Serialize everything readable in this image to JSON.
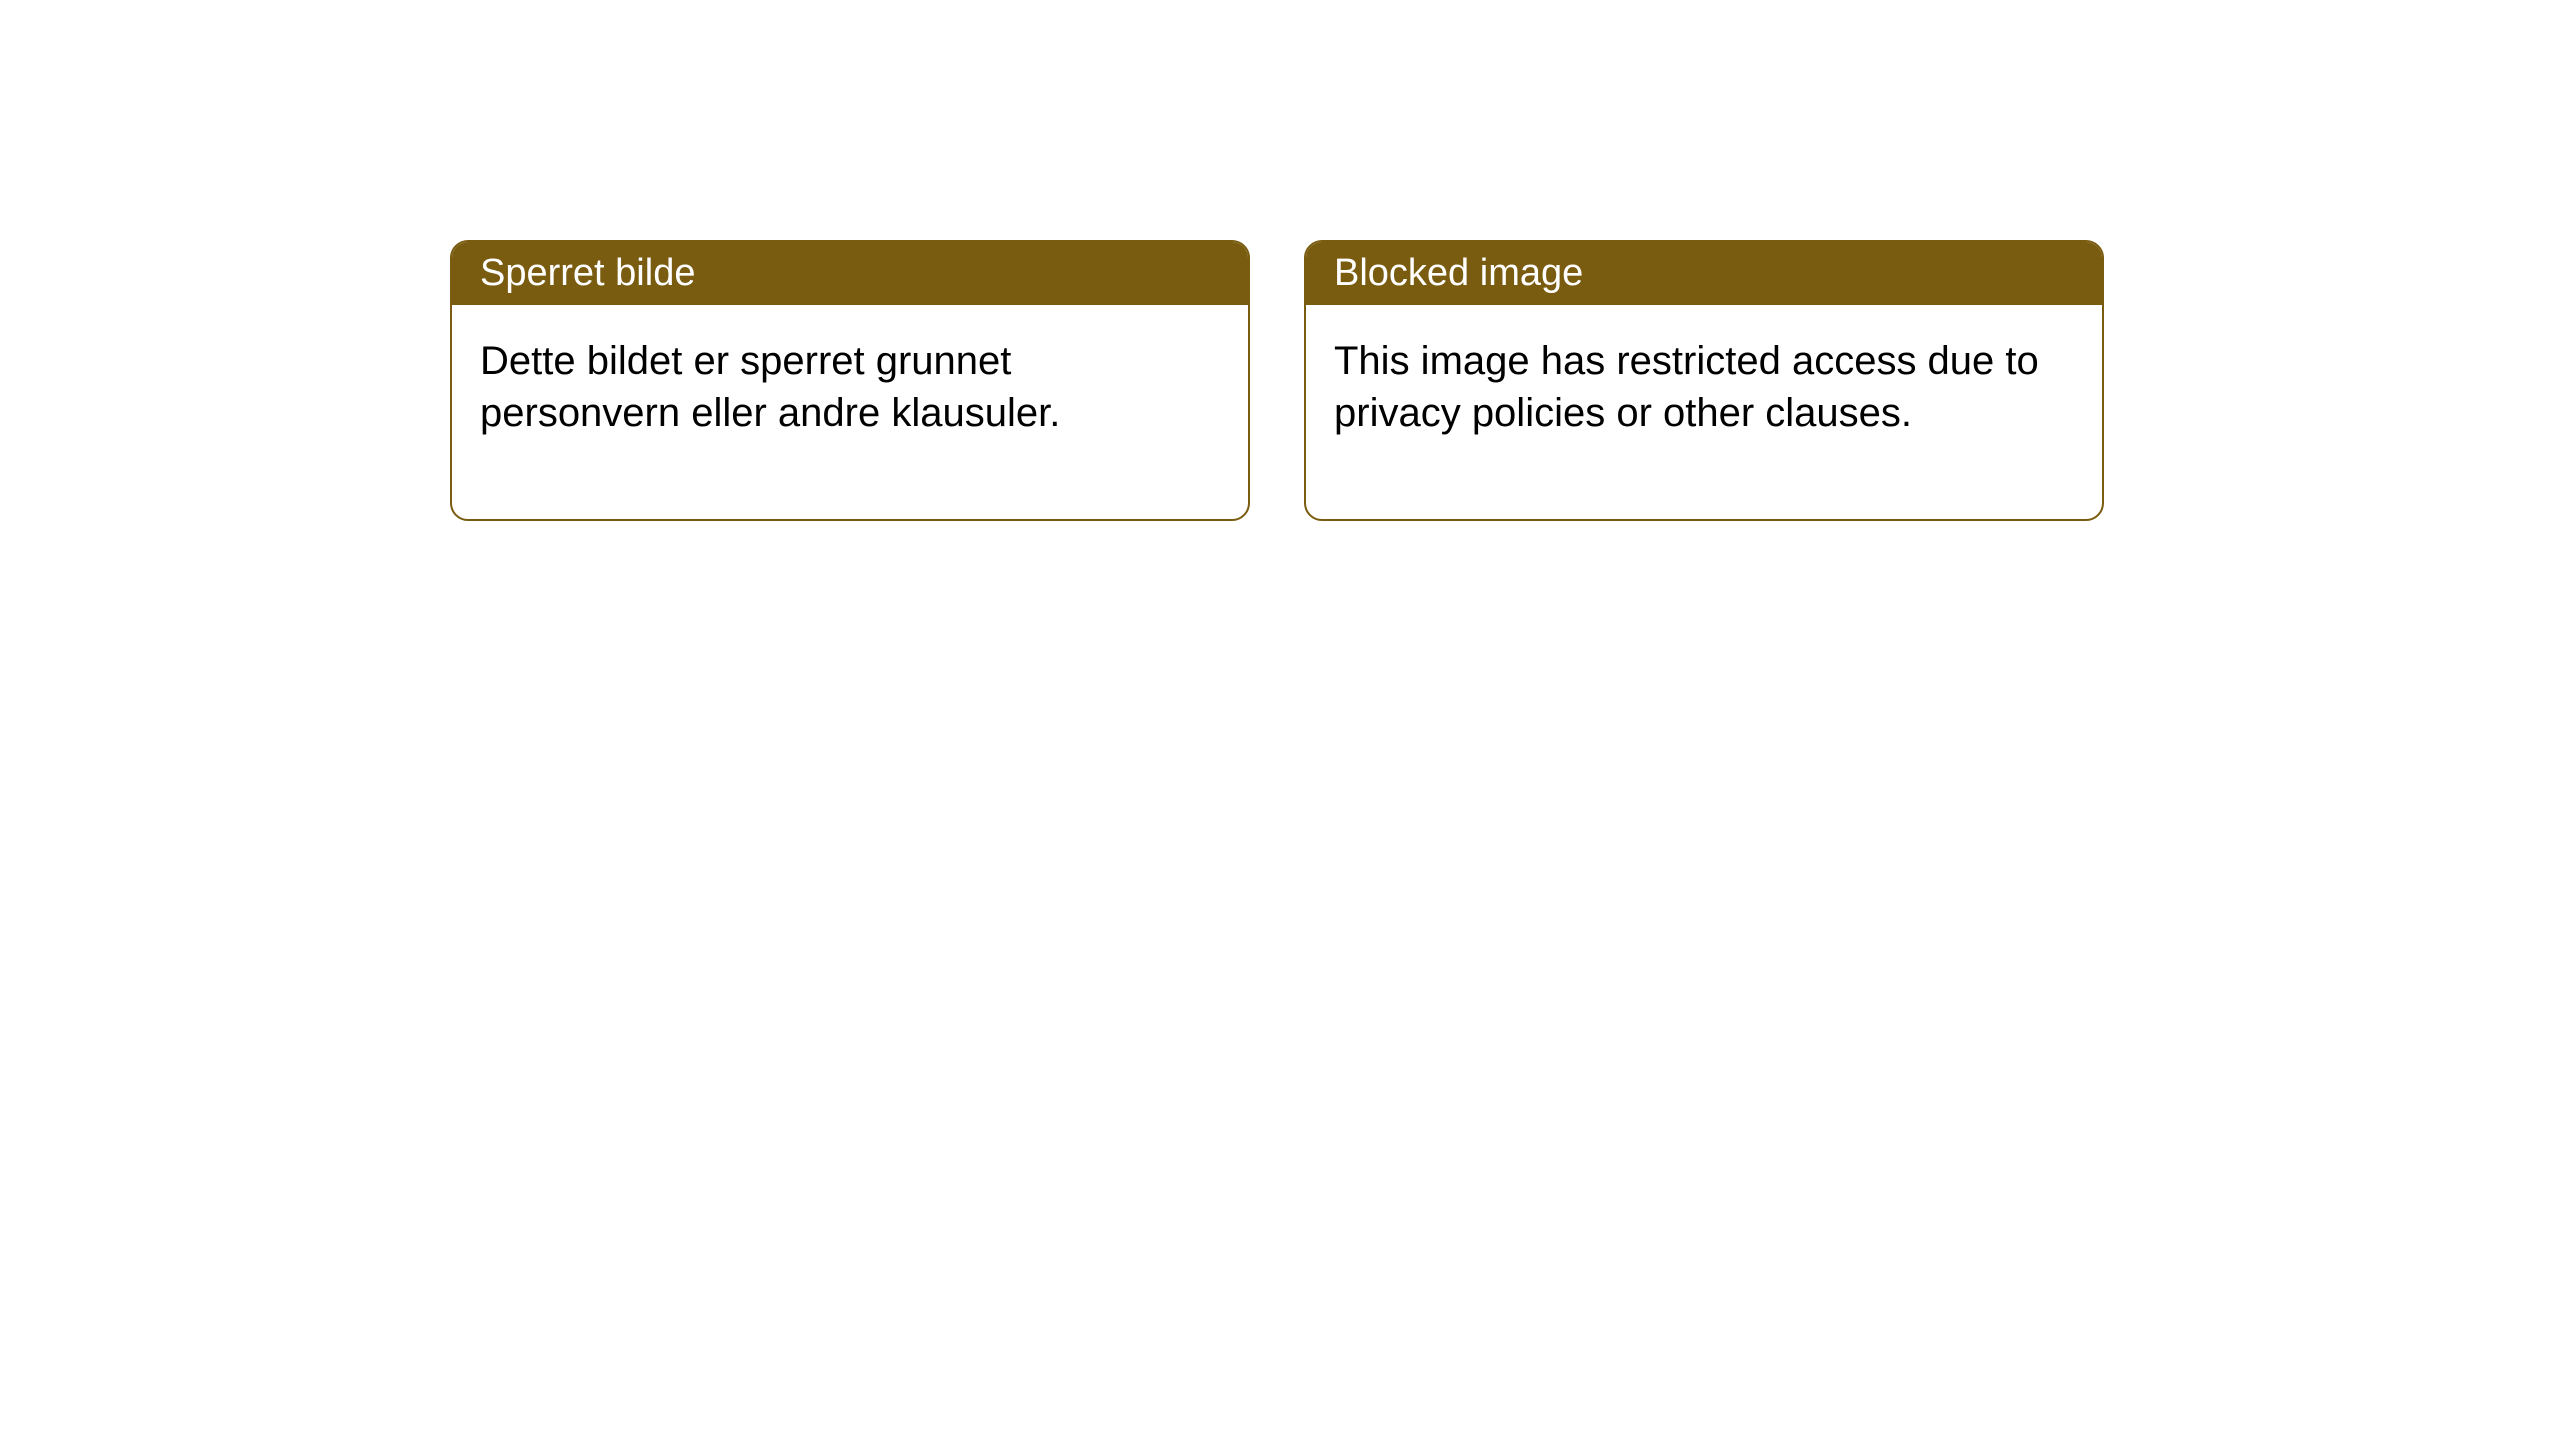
{
  "page": {
    "background_color": "#ffffff"
  },
  "notices": {
    "card_border_color": "#7a5c11",
    "card_border_radius": 18,
    "card_background": "#ffffff",
    "header_background": "#7a5c11",
    "header_text_color": "#ffffff",
    "header_fontsize": 38,
    "body_fontsize": 40,
    "body_text_color": "#000000",
    "norwegian": {
      "title": "Sperret bilde",
      "body": "Dette bildet er sperret grunnet personvern eller andre klausuler."
    },
    "english": {
      "title": "Blocked image",
      "body": "This image has restricted access due to privacy policies or other clauses."
    }
  }
}
